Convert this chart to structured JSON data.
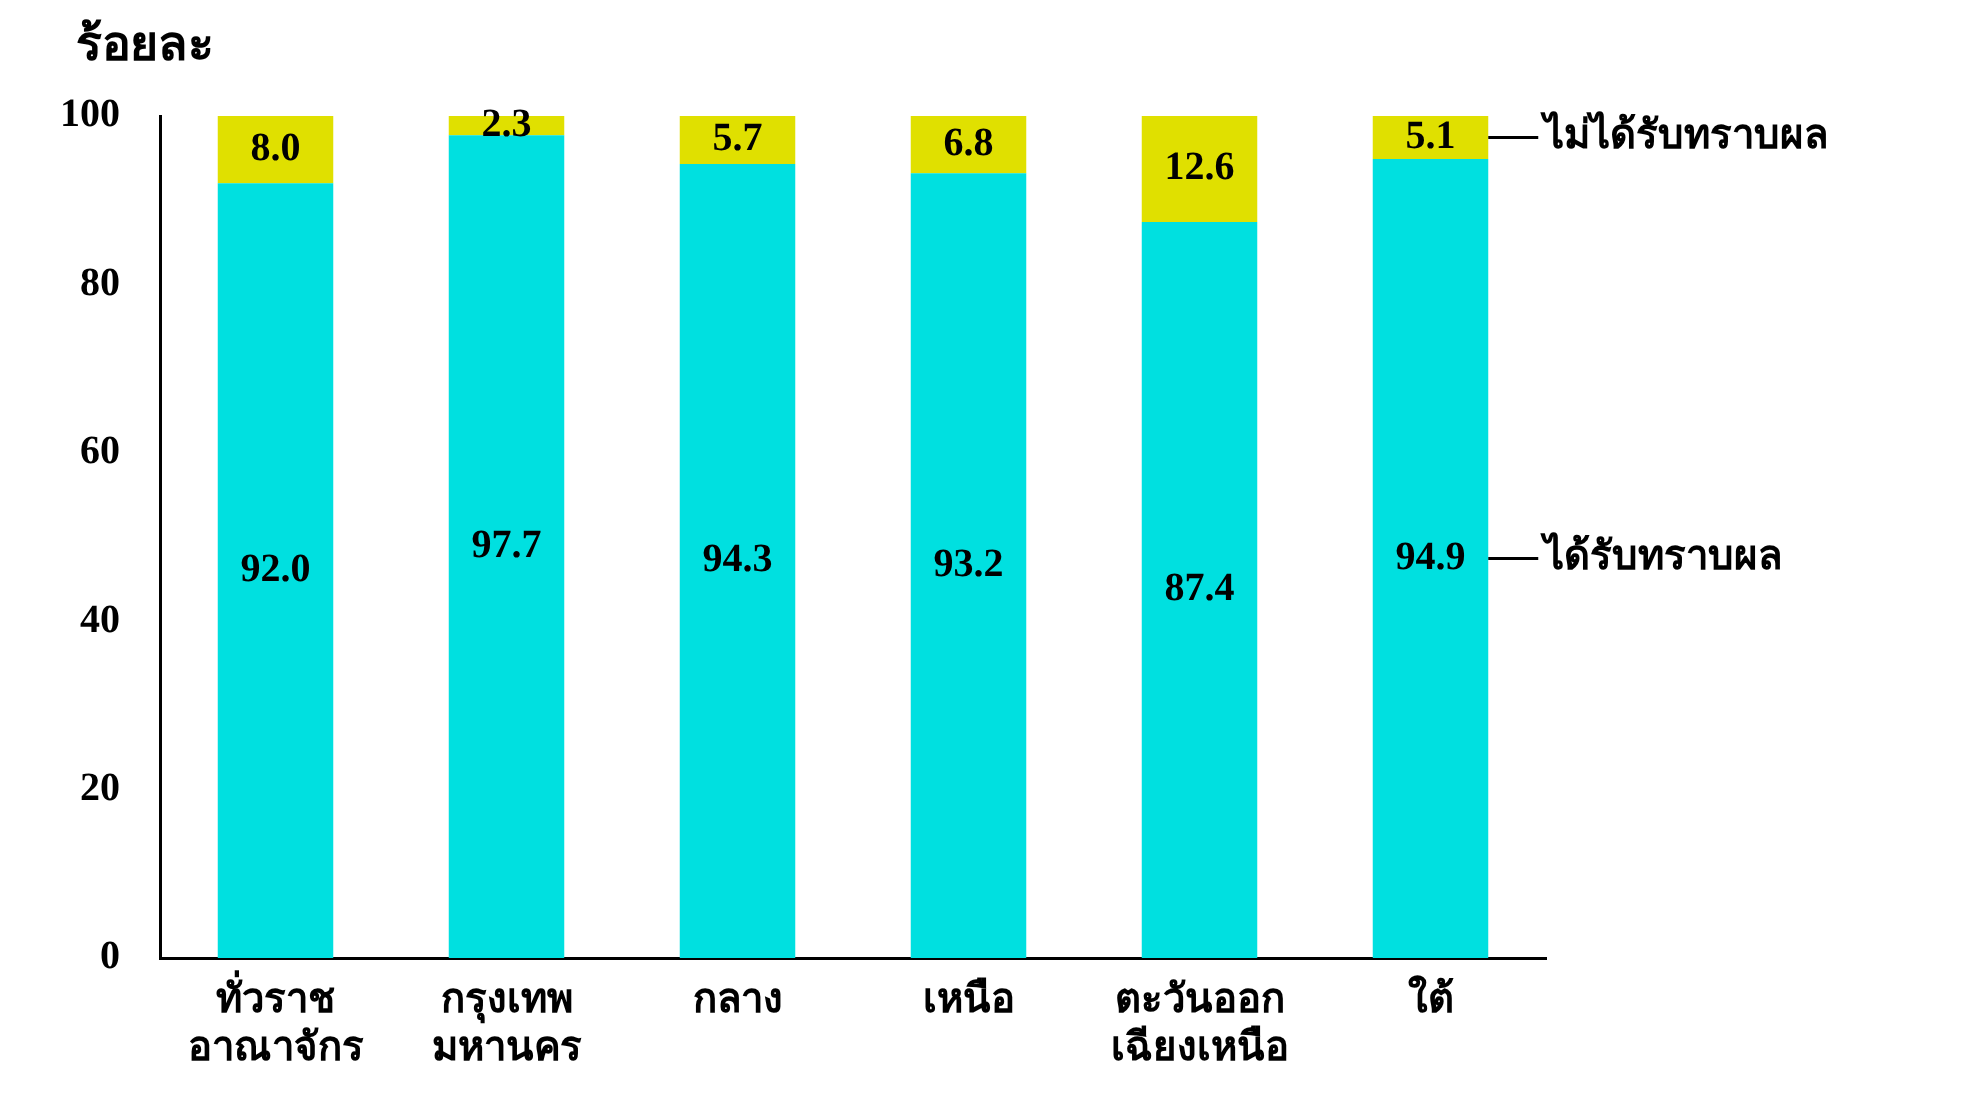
{
  "chart_data": {
    "type": "bar",
    "stacked": true,
    "ylabel": "ร้อยละ",
    "categories": [
      "ทั่วราช\nอาณาจักร",
      "กรุงเทพ\nมหานคร",
      "กลาง",
      "เหนือ",
      "ตะวันออก\nเฉียงเหนือ",
      "ใต้"
    ],
    "series": [
      {
        "name": "ได้รับทราบผล",
        "color": "#00e0e0",
        "values": [
          92.0,
          97.7,
          94.3,
          93.2,
          87.4,
          94.9
        ],
        "value_labels": [
          "92.0",
          "97.7",
          "94.3",
          "93.2",
          "87.4",
          "94.9"
        ]
      },
      {
        "name": "ไม่ได้รับทราบผล",
        "color": "#e0e000",
        "values": [
          8.0,
          2.3,
          5.7,
          6.8,
          12.6,
          5.1
        ],
        "value_labels": [
          "8.0",
          "2.3",
          "5.7",
          "6.8",
          "12.6",
          "5.1"
        ]
      }
    ],
    "ylim": [
      0,
      100
    ],
    "yticks": [
      0,
      20,
      40,
      60,
      80,
      100
    ],
    "grid": false,
    "legend": "right"
  }
}
